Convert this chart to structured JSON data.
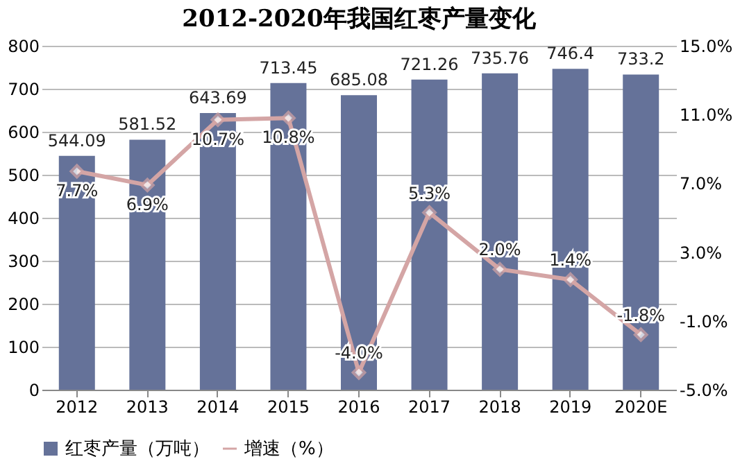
{
  "chart_data": {
    "type": "bar",
    "title": "2012-2020年我国红枣产量变化",
    "categories": [
      "2012",
      "2013",
      "2014",
      "2015",
      "2016",
      "2017",
      "2018",
      "2019",
      "2020E"
    ],
    "series": [
      {
        "name": "红枣产量（万吨）",
        "color": "#657299",
        "values": [
          544.09,
          581.52,
          643.69,
          713.45,
          685.08,
          721.26,
          735.76,
          746.4,
          733.2
        ]
      },
      {
        "name": "增速（%）",
        "type": "line",
        "axis": "y2",
        "color": "#d4a5a5",
        "marker": "diamond",
        "values": [
          7.7,
          6.9,
          10.7,
          10.8,
          -4.0,
          5.3,
          2.0,
          1.4,
          -1.8
        ],
        "value_labels": [
          "7.7%",
          "6.9%",
          "10.7%",
          "10.8%",
          "-4.0%",
          "5.3%",
          "2.0%",
          "1.4%",
          "-1.8%"
        ]
      }
    ],
    "data_labels": true,
    "ylim": [
      0,
      800
    ],
    "yticks": [
      0,
      100,
      200,
      300,
      400,
      500,
      600,
      700,
      800
    ],
    "y2lim": [
      -5,
      15
    ],
    "y2ticks": [
      {
        "value": -5,
        "label": "-5.0%"
      },
      {
        "value": -1,
        "label": "-1.0%"
      },
      {
        "value": 3,
        "label": "3.0%"
      },
      {
        "value": 7,
        "label": "7.0%"
      },
      {
        "value": 11,
        "label": "11.0%"
      },
      {
        "value": 15,
        "label": "15.0%"
      }
    ],
    "grid": "y",
    "legend": "bottom"
  }
}
